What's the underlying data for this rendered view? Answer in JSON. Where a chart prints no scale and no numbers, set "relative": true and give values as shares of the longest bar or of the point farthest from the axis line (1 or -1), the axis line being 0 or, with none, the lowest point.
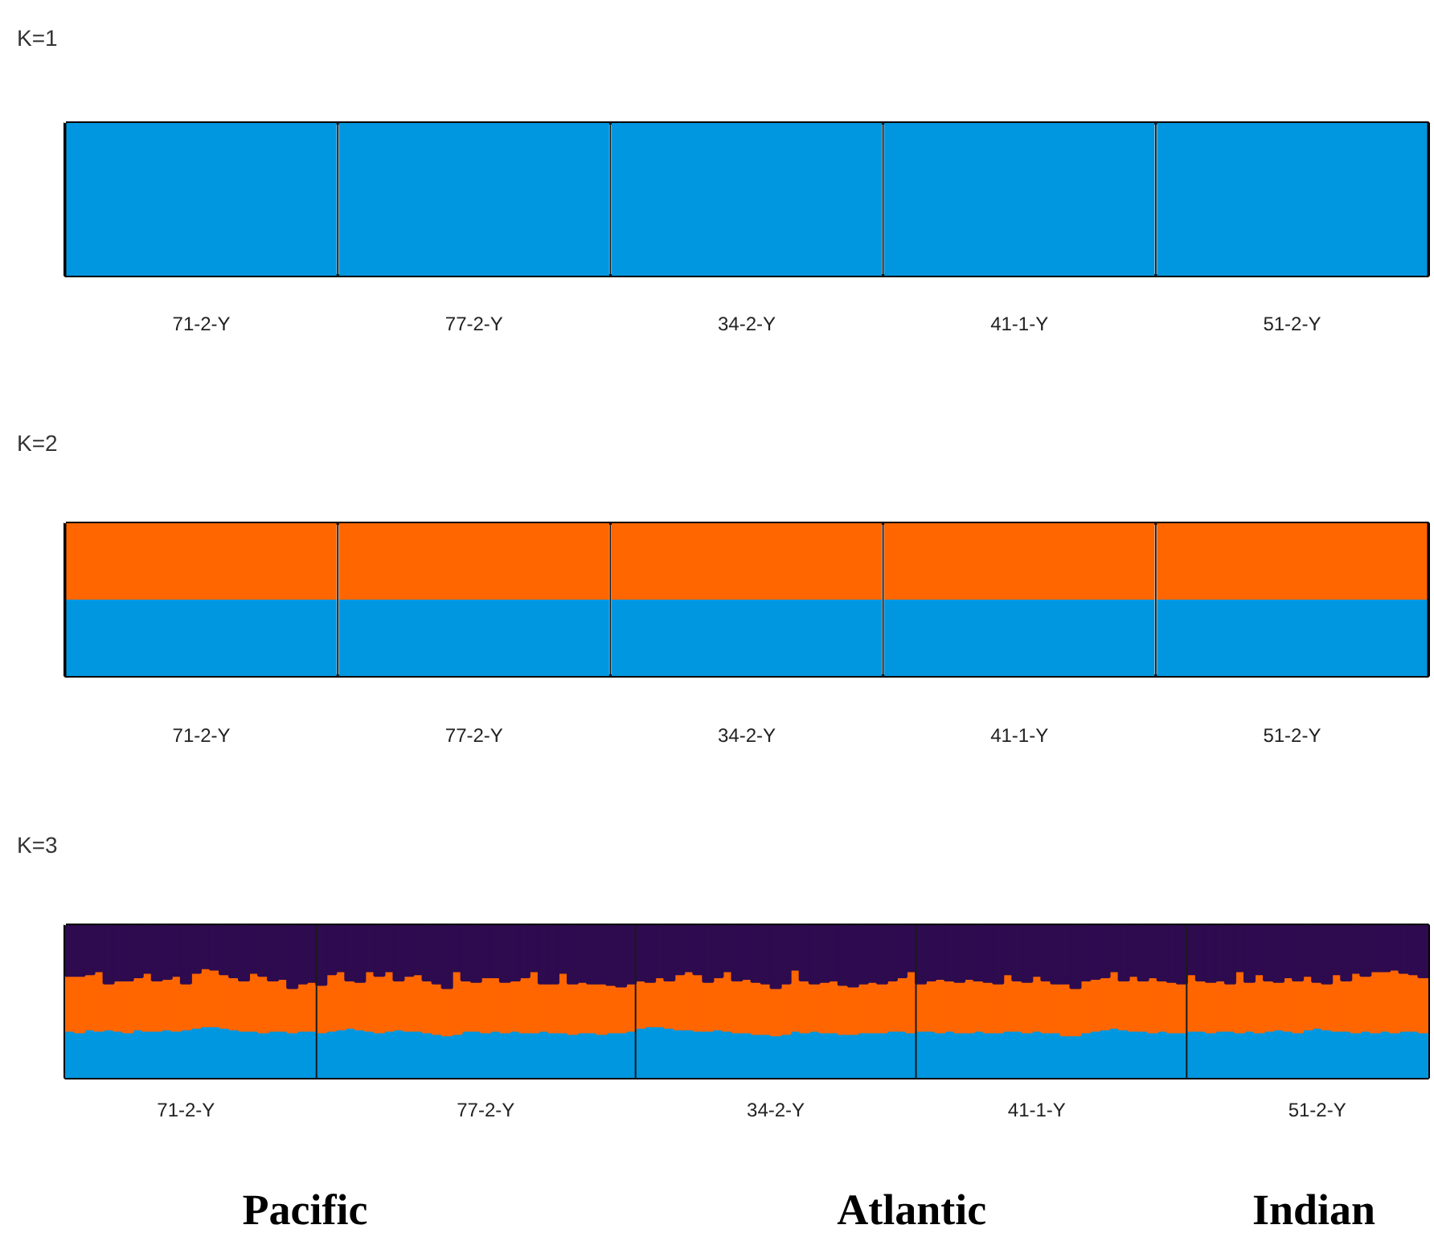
{
  "chart_data": [
    {
      "type": "bar",
      "title": "K=1",
      "relative": true,
      "categories": [
        "71-2-Y",
        "77-2-Y",
        "34-2-Y",
        "41-1-Y",
        "51-2-Y"
      ],
      "series": [
        {
          "color": "#0097e0",
          "values": [
            1,
            1,
            1,
            1,
            1
          ]
        }
      ]
    },
    {
      "type": "bar",
      "title": "K=2",
      "stacked": true,
      "relative": true,
      "categories": [
        "71-2-Y",
        "77-2-Y",
        "34-2-Y",
        "41-1-Y",
        "51-2-Y"
      ],
      "series": [
        {
          "color": "#0097e0",
          "values": [
            0.5,
            0.5,
            0.5,
            0.5,
            0.5
          ]
        },
        {
          "color": "#ff6600",
          "values": [
            0.5,
            0.5,
            0.5,
            0.5,
            0.5
          ]
        }
      ]
    },
    {
      "type": "bar",
      "title": "K=3",
      "stacked": true,
      "relative": true,
      "categories": [
        null,
        null,
        null,
        null,
        null,
        null,
        null,
        null,
        null,
        null,
        null,
        null,
        "71-2-Y",
        null,
        null,
        null,
        null,
        null,
        null,
        null,
        null,
        null,
        null,
        null,
        null,
        null,
        null,
        null,
        null,
        null,
        null,
        null,
        null,
        null,
        null,
        null,
        null,
        null,
        null,
        null,
        null,
        null,
        null,
        "77-2-Y",
        null,
        null,
        null,
        null,
        null,
        null,
        null,
        null,
        null,
        null,
        null,
        null,
        null,
        null,
        null,
        null,
        null,
        null,
        null,
        null,
        null,
        null,
        null,
        null,
        null,
        null,
        null,
        null,
        null,
        "34-2-Y",
        null,
        null,
        null,
        null,
        null,
        null,
        null,
        null,
        null,
        null,
        null,
        null,
        null,
        null,
        null,
        null,
        null,
        null,
        null,
        null,
        null,
        null,
        null,
        null,
        null,
        null,
        "41-1-Y",
        null,
        null,
        null,
        null,
        null,
        null,
        null,
        null,
        null,
        null,
        null,
        null,
        null,
        null,
        null,
        null,
        null,
        null,
        null,
        null,
        null,
        null,
        null,
        null,
        null,
        null,
        null,
        null,
        "51-2-Y",
        null,
        null,
        null,
        null,
        null,
        null,
        null,
        null,
        null,
        null,
        null
      ],
      "annotations": [
        "Pacific",
        "Atlantic",
        "Indian"
      ],
      "series": [
        {
          "color": "#0097e0",
          "values": [
            0.31,
            0.3,
            0.32,
            0.31,
            0.32,
            0.31,
            0.3,
            0.32,
            0.31,
            0.31,
            0.32,
            0.31,
            0.32,
            0.33,
            0.34,
            0.34,
            0.33,
            0.32,
            0.31,
            0.31,
            0.3,
            0.31,
            0.31,
            0.3,
            0.31,
            0.31,
            0.3,
            0.31,
            0.32,
            0.33,
            0.32,
            0.31,
            0.3,
            0.31,
            0.32,
            0.31,
            0.31,
            0.3,
            0.29,
            0.28,
            0.29,
            0.31,
            0.31,
            0.3,
            0.31,
            0.3,
            0.31,
            0.3,
            0.3,
            0.31,
            0.3,
            0.3,
            0.29,
            0.3,
            0.3,
            0.29,
            0.3,
            0.3,
            0.31,
            0.33,
            0.34,
            0.34,
            0.33,
            0.32,
            0.32,
            0.31,
            0.31,
            0.32,
            0.31,
            0.3,
            0.3,
            0.29,
            0.29,
            0.28,
            0.29,
            0.31,
            0.3,
            0.31,
            0.3,
            0.3,
            0.29,
            0.29,
            0.3,
            0.3,
            0.3,
            0.31,
            0.31,
            0.3,
            0.31,
            0.31,
            0.3,
            0.31,
            0.3,
            0.3,
            0.31,
            0.3,
            0.3,
            0.31,
            0.31,
            0.3,
            0.31,
            0.3,
            0.3,
            0.28,
            0.28,
            0.3,
            0.31,
            0.32,
            0.33,
            0.32,
            0.31,
            0.31,
            0.3,
            0.31,
            0.3,
            0.3,
            0.31,
            0.31,
            0.3,
            0.31,
            0.31,
            0.3,
            0.31,
            0.3,
            0.31,
            0.32,
            0.31,
            0.3,
            0.32,
            0.33,
            0.32,
            0.31,
            0.31,
            0.3,
            0.31,
            0.3,
            0.31,
            0.3,
            0.31,
            0.31,
            0.3
          ]
        },
        {
          "color": "#ff6600",
          "values": [
            0.36,
            0.37,
            0.36,
            0.39,
            0.3,
            0.33,
            0.34,
            0.34,
            0.38,
            0.33,
            0.33,
            0.36,
            0.3,
            0.36,
            0.38,
            0.37,
            0.35,
            0.34,
            0.33,
            0.38,
            0.37,
            0.33,
            0.34,
            0.29,
            0.31,
            0.32,
            0.31,
            0.37,
            0.38,
            0.31,
            0.31,
            0.39,
            0.37,
            0.39,
            0.32,
            0.36,
            0.37,
            0.34,
            0.33,
            0.31,
            0.41,
            0.33,
            0.32,
            0.36,
            0.35,
            0.33,
            0.33,
            0.36,
            0.4,
            0.31,
            0.32,
            0.39,
            0.33,
            0.33,
            0.32,
            0.33,
            0.31,
            0.3,
            0.31,
            0.31,
            0.29,
            0.32,
            0.31,
            0.36,
            0.38,
            0.37,
            0.32,
            0.34,
            0.39,
            0.34,
            0.35,
            0.34,
            0.33,
            0.31,
            0.33,
            0.4,
            0.34,
            0.31,
            0.33,
            0.34,
            0.32,
            0.31,
            0.32,
            0.33,
            0.32,
            0.33,
            0.35,
            0.4,
            0.31,
            0.33,
            0.35,
            0.33,
            0.33,
            0.35,
            0.33,
            0.33,
            0.32,
            0.37,
            0.33,
            0.33,
            0.36,
            0.34,
            0.32,
            0.34,
            0.31,
            0.34,
            0.34,
            0.34,
            0.37,
            0.32,
            0.36,
            0.33,
            0.36,
            0.33,
            0.33,
            0.32,
            0.37,
            0.33,
            0.33,
            0.33,
            0.31,
            0.4,
            0.32,
            0.38,
            0.33,
            0.31,
            0.35,
            0.34,
            0.35,
            0.3,
            0.3,
            0.37,
            0.33,
            0.39,
            0.36,
            0.4,
            0.39,
            0.41,
            0.38,
            0.37,
            0.36
          ]
        },
        {
          "color": "#2e0b4f",
          "values": [
            0.33,
            0.33,
            0.32,
            0.3,
            0.38,
            0.36,
            0.36,
            0.34,
            0.31,
            0.36,
            0.35,
            0.33,
            0.38,
            0.31,
            0.28,
            0.29,
            0.32,
            0.34,
            0.36,
            0.31,
            0.33,
            0.36,
            0.35,
            0.41,
            0.38,
            0.37,
            0.39,
            0.32,
            0.3,
            0.36,
            0.37,
            0.3,
            0.33,
            0.3,
            0.36,
            0.33,
            0.32,
            0.36,
            0.38,
            0.41,
            0.3,
            0.36,
            0.37,
            0.34,
            0.34,
            0.37,
            0.36,
            0.34,
            0.3,
            0.38,
            0.38,
            0.31,
            0.38,
            0.37,
            0.38,
            0.38,
            0.39,
            0.4,
            0.38,
            0.36,
            0.37,
            0.34,
            0.36,
            0.32,
            0.3,
            0.32,
            0.37,
            0.34,
            0.3,
            0.36,
            0.35,
            0.37,
            0.38,
            0.41,
            0.38,
            0.29,
            0.36,
            0.38,
            0.37,
            0.36,
            0.39,
            0.4,
            0.38,
            0.37,
            0.38,
            0.36,
            0.34,
            0.3,
            0.38,
            0.36,
            0.35,
            0.36,
            0.37,
            0.35,
            0.36,
            0.37,
            0.38,
            0.32,
            0.36,
            0.37,
            0.33,
            0.36,
            0.38,
            0.38,
            0.41,
            0.36,
            0.35,
            0.34,
            0.3,
            0.36,
            0.33,
            0.36,
            0.34,
            0.36,
            0.37,
            0.38,
            0.32,
            0.36,
            0.37,
            0.36,
            0.38,
            0.3,
            0.37,
            0.32,
            0.36,
            0.37,
            0.34,
            0.36,
            0.33,
            0.37,
            0.38,
            0.32,
            0.36,
            0.31,
            0.33,
            0.3,
            0.3,
            0.29,
            0.31,
            0.32,
            0.34
          ]
        }
      ]
    }
  ]
}
